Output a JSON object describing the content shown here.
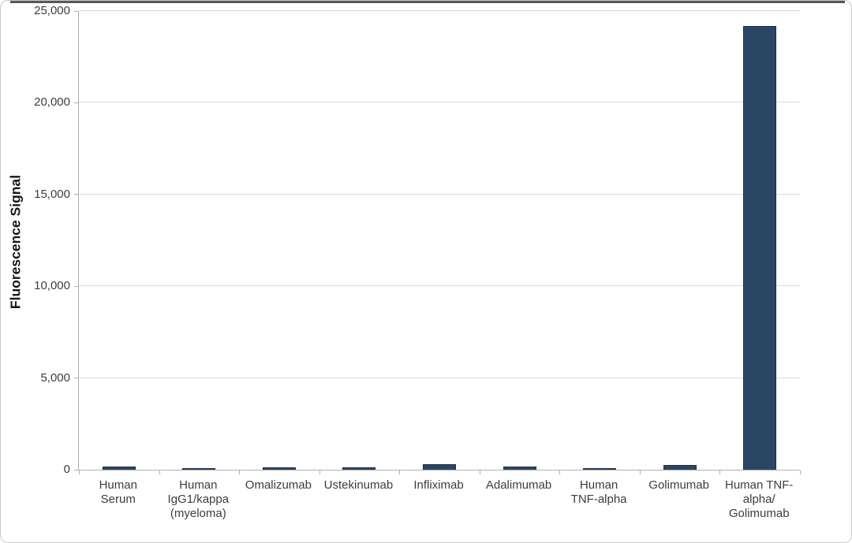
{
  "chart_data": {
    "type": "bar",
    "title": "",
    "xlabel": "",
    "ylabel": "Fluorescence Signal",
    "ylim": [
      0,
      25000
    ],
    "grid": true,
    "legend": false,
    "categories": [
      "Human\nSerum",
      "Human\nIgG1/kappa\n(myeloma)",
      "Omalizumab",
      "Ustekinumab",
      "Infliximab",
      "Adalimumab",
      "Human\nTNF-alpha",
      "Golimumab",
      "Human TNF-\nalpha/\nGolimumab"
    ],
    "values": [
      175,
      100,
      140,
      140,
      280,
      175,
      90,
      250,
      24200
    ],
    "yticks": [
      0,
      5000,
      10000,
      15000,
      20000,
      25000
    ],
    "ytick_labels": [
      "0",
      "5,000",
      "10,000",
      "15,000",
      "20,000",
      "25,000"
    ],
    "colors": {
      "bar_fill": "#2a4663",
      "bar_border": "#1b2f49",
      "gridline": "#d9d9d9",
      "axis": "#b0b0b0",
      "top_rule": "#54575c"
    }
  }
}
